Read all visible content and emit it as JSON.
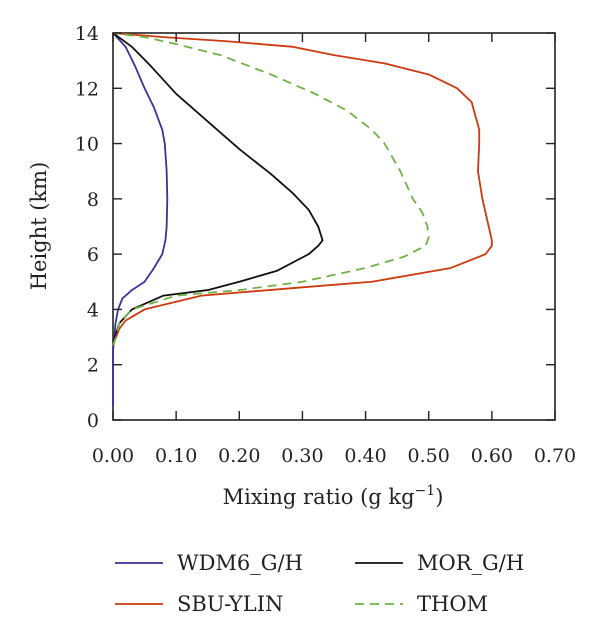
{
  "chart_data": {
    "type": "line",
    "xlabel": "Mixing ratio (g kg",
    "xlabel_exponent": "−1",
    "xlabel_suffix": ")",
    "ylabel": "Height (km)",
    "xlim": [
      0,
      0.7
    ],
    "ylim": [
      0,
      14
    ],
    "xticks": [
      "0.00",
      "0.10",
      "0.20",
      "0.30",
      "0.40",
      "0.50",
      "0.60",
      "0.70"
    ],
    "yticks": [
      "0",
      "2",
      "4",
      "6",
      "8",
      "10",
      "12",
      "14"
    ],
    "grid": false,
    "legend_position": "bottom",
    "series": [
      {
        "name": "WDM6_G/H",
        "color": "#3a3399",
        "dash": "solid",
        "points": [
          [
            0,
            0.5
          ],
          [
            0,
            2.5
          ],
          [
            0.002,
            3.0
          ],
          [
            0.004,
            3.5
          ],
          [
            0.008,
            4.0
          ],
          [
            0.015,
            4.4
          ],
          [
            0.03,
            4.7
          ],
          [
            0.05,
            5.0
          ],
          [
            0.065,
            5.5
          ],
          [
            0.078,
            6.0
          ],
          [
            0.083,
            6.5
          ],
          [
            0.085,
            7.0
          ],
          [
            0.086,
            8.0
          ],
          [
            0.085,
            9.0
          ],
          [
            0.082,
            10.0
          ],
          [
            0.078,
            10.5
          ],
          [
            0.065,
            11.3
          ],
          [
            0.05,
            12.0
          ],
          [
            0.035,
            12.8
          ],
          [
            0.02,
            13.5
          ],
          [
            0,
            14.0
          ]
        ]
      },
      {
        "name": "MOR_G/H",
        "color": "#111111",
        "dash": "solid",
        "points": [
          [
            0,
            2.7
          ],
          [
            0.003,
            3.0
          ],
          [
            0.01,
            3.5
          ],
          [
            0.03,
            4.0
          ],
          [
            0.08,
            4.5
          ],
          [
            0.15,
            4.7
          ],
          [
            0.2,
            5.0
          ],
          [
            0.26,
            5.4
          ],
          [
            0.31,
            6.0
          ],
          [
            0.325,
            6.3
          ],
          [
            0.332,
            6.5
          ],
          [
            0.325,
            7.0
          ],
          [
            0.31,
            7.6
          ],
          [
            0.285,
            8.2
          ],
          [
            0.25,
            8.9
          ],
          [
            0.2,
            9.8
          ],
          [
            0.15,
            10.8
          ],
          [
            0.1,
            11.8
          ],
          [
            0.06,
            12.8
          ],
          [
            0.03,
            13.5
          ],
          [
            0,
            14.0
          ]
        ]
      },
      {
        "name": "SBU-YLIN",
        "color": "#cc3a0e",
        "dash": "solid",
        "points": [
          [
            0,
            2.7
          ],
          [
            0.005,
            3.0
          ],
          [
            0.01,
            3.3
          ],
          [
            0.02,
            3.6
          ],
          [
            0.05,
            4.0
          ],
          [
            0.14,
            4.5
          ],
          [
            0.3,
            4.8
          ],
          [
            0.41,
            5.0
          ],
          [
            0.535,
            5.5
          ],
          [
            0.59,
            6.0
          ],
          [
            0.6,
            6.3
          ],
          [
            0.6,
            6.5
          ],
          [
            0.595,
            7.0
          ],
          [
            0.585,
            8.0
          ],
          [
            0.578,
            9.0
          ],
          [
            0.58,
            10.0
          ],
          [
            0.58,
            10.5
          ],
          [
            0.568,
            11.5
          ],
          [
            0.545,
            12.0
          ],
          [
            0.5,
            12.5
          ],
          [
            0.43,
            12.9
          ],
          [
            0.35,
            13.2
          ],
          [
            0.285,
            13.5
          ],
          [
            0.18,
            13.7
          ],
          [
            0.08,
            13.85
          ],
          [
            0,
            14.0
          ]
        ]
      },
      {
        "name": "THOM",
        "color": "#6fb344",
        "dash": "dashed",
        "points": [
          [
            0,
            2.7
          ],
          [
            0.005,
            3.0
          ],
          [
            0.01,
            3.5
          ],
          [
            0.03,
            4.0
          ],
          [
            0.1,
            4.5
          ],
          [
            0.2,
            4.7
          ],
          [
            0.3,
            5.0
          ],
          [
            0.4,
            5.5
          ],
          [
            0.46,
            5.9
          ],
          [
            0.495,
            6.3
          ],
          [
            0.5,
            6.6
          ],
          [
            0.498,
            7.0
          ],
          [
            0.49,
            7.5
          ],
          [
            0.475,
            8.0
          ],
          [
            0.455,
            9.0
          ],
          [
            0.43,
            10.0
          ],
          [
            0.41,
            10.5
          ],
          [
            0.37,
            11.2
          ],
          [
            0.32,
            11.8
          ],
          [
            0.25,
            12.5
          ],
          [
            0.17,
            13.2
          ],
          [
            0.1,
            13.6
          ],
          [
            0.05,
            13.85
          ],
          [
            0,
            14.0
          ]
        ]
      }
    ]
  }
}
